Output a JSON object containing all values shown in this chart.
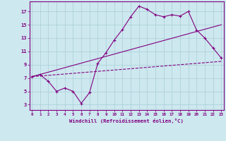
{
  "xlabel": "Windchill (Refroidissement éolien,°C)",
  "background_color": "#cde8ef",
  "grid_color": "#aacdd6",
  "line_color": "#800080",
  "x_ticks": [
    0,
    1,
    2,
    3,
    4,
    5,
    6,
    7,
    8,
    9,
    10,
    11,
    12,
    13,
    14,
    15,
    16,
    17,
    18,
    19,
    20,
    21,
    22,
    23
  ],
  "y_ticks": [
    3,
    5,
    7,
    9,
    11,
    13,
    15,
    17
  ],
  "xlim": [
    -0.3,
    23.3
  ],
  "ylim": [
    2.2,
    18.5
  ],
  "series1_x": [
    0,
    1,
    2,
    3,
    4,
    5,
    6,
    7,
    8,
    9,
    10,
    11,
    12,
    13,
    14,
    15,
    16,
    17,
    18,
    19,
    20,
    21,
    22,
    23
  ],
  "series1_y": [
    7.2,
    7.5,
    6.5,
    5.0,
    5.5,
    5.0,
    3.2,
    4.8,
    9.2,
    10.8,
    12.7,
    14.3,
    16.2,
    17.8,
    17.3,
    16.5,
    16.2,
    16.5,
    16.3,
    17.0,
    14.2,
    13.0,
    11.5,
    10.0
  ],
  "series2_x": [
    0,
    23
  ],
  "series2_y": [
    7.2,
    9.5
  ],
  "series3_x": [
    0,
    23
  ],
  "series3_y": [
    7.2,
    15.0
  ]
}
